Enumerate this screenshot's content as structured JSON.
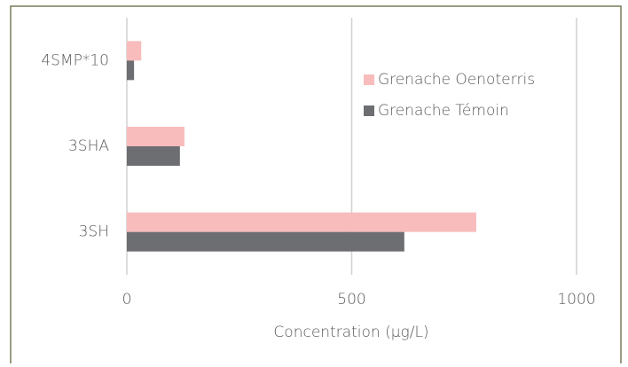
{
  "chart_data": {
    "type": "barh",
    "xlabel": "Concentration (µg/L)",
    "categories": [
      "4SMP*10",
      "3SHA",
      "3SH"
    ],
    "series": [
      {
        "name": "Grenache Oenoterris",
        "color": "#f8bcbc",
        "values": [
          32,
          128,
          777
        ]
      },
      {
        "name": "Grenache Témoin",
        "color": "#6d6e71",
        "values": [
          16,
          118,
          617
        ]
      }
    ],
    "xlim": [
      0,
      1000
    ],
    "xticks": [
      0,
      500,
      1000
    ],
    "grid": true,
    "legend": "upper right"
  }
}
